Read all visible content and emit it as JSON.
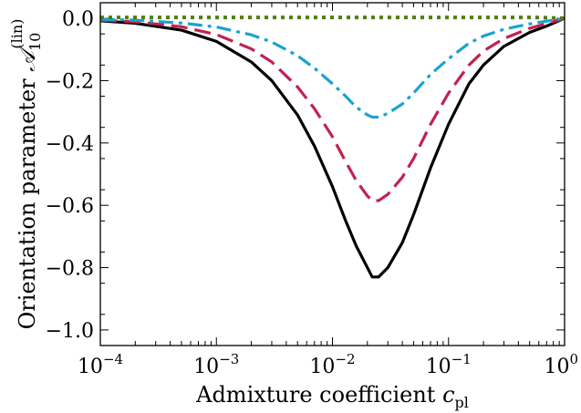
{
  "chart_data": {
    "type": "line",
    "xscale": "log",
    "xlim": [
      0.0001,
      1
    ],
    "ylim": [
      -1.05,
      0.05
    ],
    "grid": false,
    "xlabel": {
      "text": "Admixture coefficient ",
      "symbol": "c",
      "subscript": "pl"
    },
    "ylabel": {
      "text": "Orientation parameter ",
      "symbol": "𝒜",
      "subscript": "10",
      "superscript": "(lin)"
    },
    "x_ticks": [
      {
        "value": 0.0001,
        "base": "10",
        "exp": "−4"
      },
      {
        "value": 0.001,
        "base": "10",
        "exp": "−3"
      },
      {
        "value": 0.01,
        "base": "10",
        "exp": "−2"
      },
      {
        "value": 0.1,
        "base": "10",
        "exp": "−1"
      },
      {
        "value": 1,
        "base": "10",
        "exp": "0"
      }
    ],
    "y_ticks": [
      {
        "value": 0.0,
        "label": "0.0"
      },
      {
        "value": -0.2,
        "label": "−0.2"
      },
      {
        "value": -0.4,
        "label": "−0.4"
      },
      {
        "value": -0.6,
        "label": "−0.6"
      },
      {
        "value": -0.8,
        "label": "−0.8"
      },
      {
        "value": -1.0,
        "label": "−1.0"
      }
    ],
    "x": [
      0.0001,
      0.0002,
      0.0005,
      0.001,
      0.002,
      0.003,
      0.005,
      0.007,
      0.01,
      0.013,
      0.016,
      0.02,
      0.022,
      0.025,
      0.03,
      0.04,
      0.05,
      0.07,
      0.1,
      0.15,
      0.2,
      0.3,
      0.5,
      0.7,
      1.0
    ],
    "series": [
      {
        "color": "#000000",
        "dash": "solid",
        "width": 3.2,
        "values": [
          -0.008,
          -0.016,
          -0.038,
          -0.074,
          -0.14,
          -0.2,
          -0.31,
          -0.41,
          -0.54,
          -0.65,
          -0.73,
          -0.8,
          -0.83,
          -0.83,
          -0.8,
          -0.72,
          -0.63,
          -0.48,
          -0.34,
          -0.21,
          -0.15,
          -0.09,
          -0.045,
          -0.025,
          0.0
        ]
      },
      {
        "color": "#c0234f",
        "dash": "dashed",
        "width": 3.2,
        "values": [
          -0.006,
          -0.011,
          -0.027,
          -0.052,
          -0.098,
          -0.14,
          -0.22,
          -0.29,
          -0.38,
          -0.46,
          -0.52,
          -0.57,
          -0.585,
          -0.585,
          -0.565,
          -0.51,
          -0.45,
          -0.34,
          -0.24,
          -0.15,
          -0.105,
          -0.065,
          -0.032,
          -0.017,
          0.0
        ]
      },
      {
        "color": "#1aa3d1",
        "dash": "dashdot",
        "width": 3.2,
        "values": [
          -0.003,
          -0.006,
          -0.015,
          -0.028,
          -0.053,
          -0.076,
          -0.12,
          -0.16,
          -0.21,
          -0.25,
          -0.285,
          -0.31,
          -0.317,
          -0.317,
          -0.305,
          -0.275,
          -0.24,
          -0.18,
          -0.13,
          -0.08,
          -0.057,
          -0.035,
          -0.018,
          -0.009,
          0.0
        ]
      },
      {
        "color": "#4f7f0f",
        "dash": "dotted",
        "width": 4,
        "values": [
          0.003,
          0.003,
          0.003,
          0.003,
          0.003,
          0.003,
          0.003,
          0.003,
          0.003,
          0.003,
          0.003,
          0.003,
          0.003,
          0.003,
          0.003,
          0.003,
          0.003,
          0.003,
          0.003,
          0.003,
          0.003,
          0.003,
          0.003,
          0.002,
          0.0
        ]
      }
    ]
  }
}
